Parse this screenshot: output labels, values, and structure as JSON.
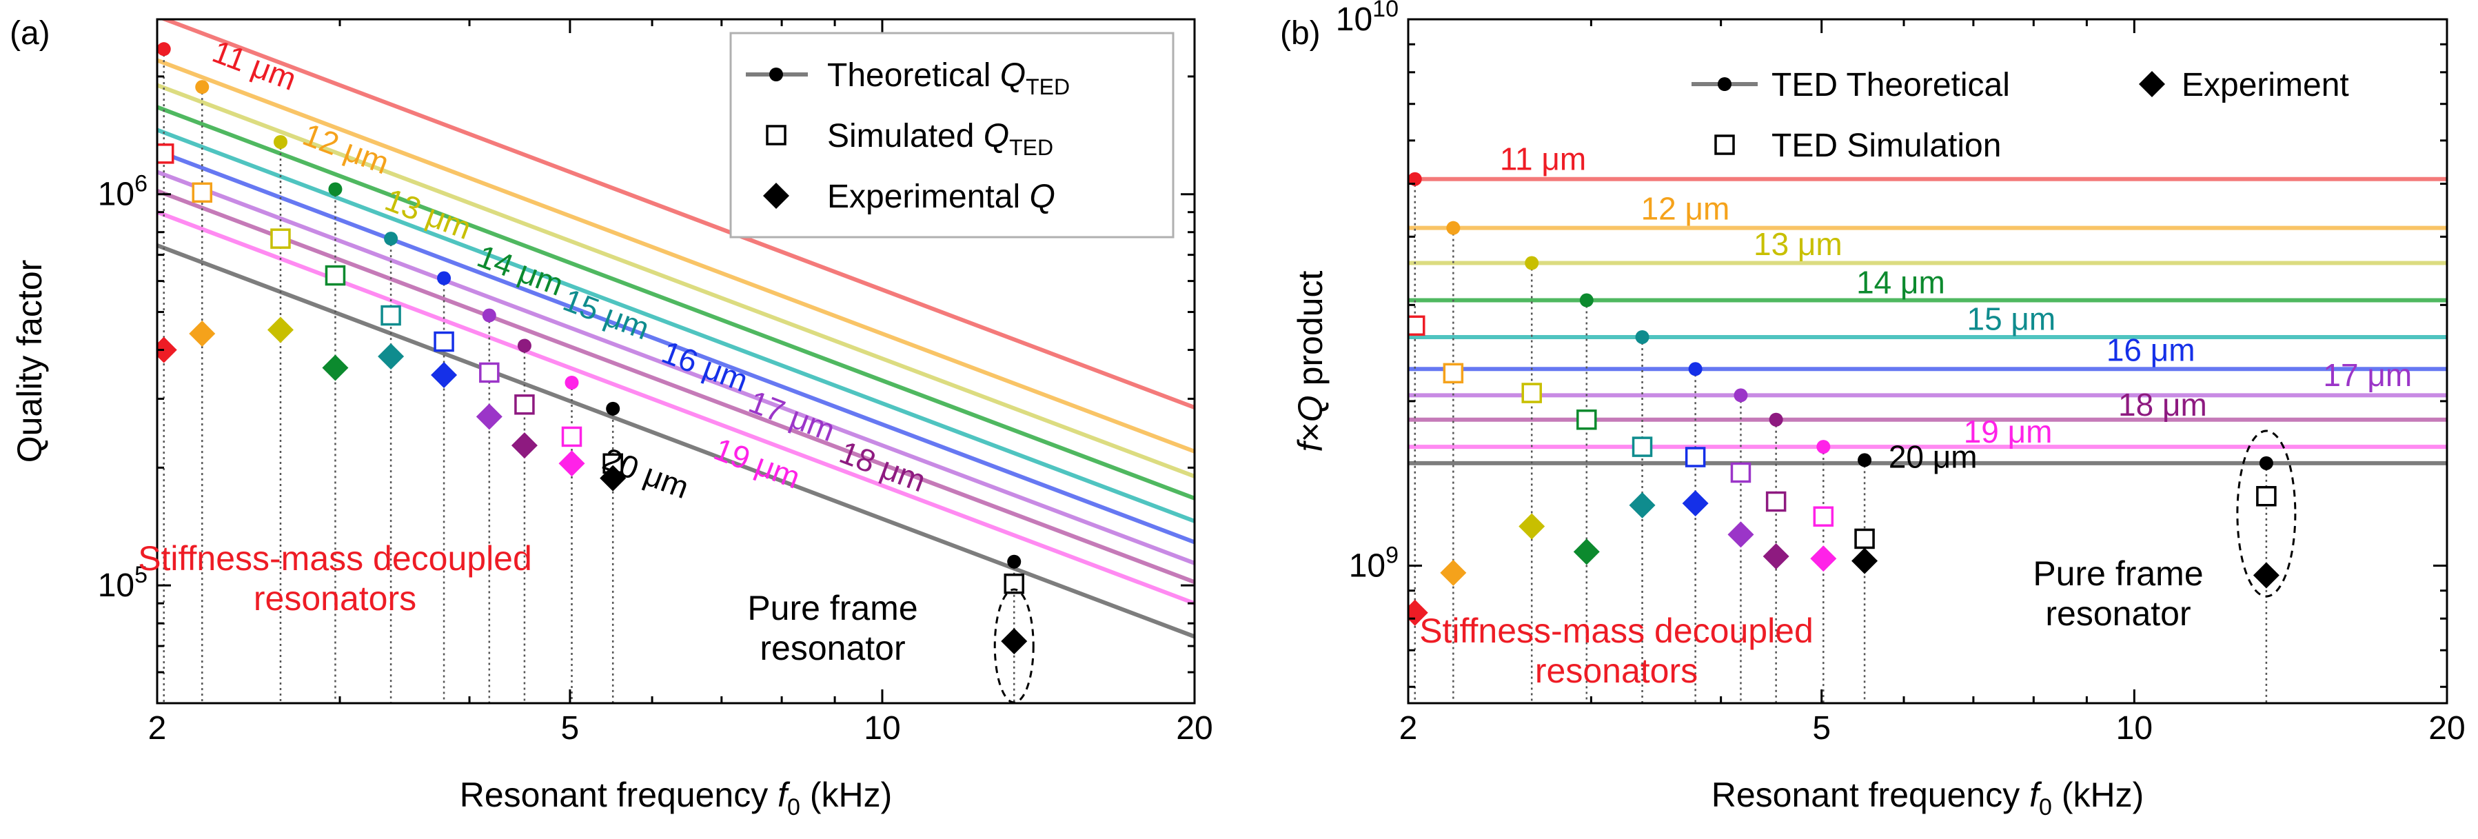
{
  "chart_data": [
    {
      "panel_label": "(a)",
      "type": "scatter",
      "xscale": "log",
      "yscale": "log",
      "xlim": [
        2,
        20
      ],
      "ylim": [
        50000,
        2800000
      ],
      "xticks": [
        2,
        5,
        10,
        20
      ],
      "xtick_labels": [
        "2",
        "5",
        "10",
        "20"
      ],
      "yticks": [
        100000,
        1000000
      ],
      "xlabel": "Resonant frequency f0 (kHz)",
      "xlabel_parts": [
        "Resonant frequency ",
        "f",
        "0",
        "  (kHz)"
      ],
      "ylabel": "Quality factor",
      "legend": [
        {
          "label": "Theoretical Q_TED",
          "prefix": "Theoretical ",
          "sym": "Q",
          "sub": "TED",
          "marker": "line-dot"
        },
        {
          "label": "Simulated Q_TED",
          "prefix": "Simulated ",
          "sym": "Q",
          "sub": "TED",
          "marker": "open-square"
        },
        {
          "label": "Experimental Q",
          "prefix": "Experimental ",
          "sym": "Q",
          "sub": "",
          "marker": "diamond"
        }
      ],
      "series": [
        {
          "name": "11 μm",
          "color": "#ee1c25",
          "f": 2.03,
          "theory": 2350000,
          "sim": 1270000,
          "exp": 400000
        },
        {
          "name": "12 μm",
          "color": "#f5a21b",
          "f": 2.21,
          "theory": 1880000,
          "sim": 1010000,
          "exp": 440000
        },
        {
          "name": "13 μm",
          "color": "#c8bf00",
          "f": 2.63,
          "theory": 1360000,
          "sim": 770000,
          "exp": 450000
        },
        {
          "name": "14 μm",
          "color": "#0c8a2e",
          "f": 2.97,
          "theory": 1030000,
          "sim": 620000,
          "exp": 360000
        },
        {
          "name": "15 μm",
          "color": "#0f8c8e",
          "f": 3.36,
          "theory": 770000,
          "sim": 490000,
          "exp": 385000
        },
        {
          "name": "16 μm",
          "color": "#1530e8",
          "f": 3.78,
          "theory": 610000,
          "sim": 420000,
          "exp": 345000
        },
        {
          "name": "17 μm",
          "color": "#9b35c8",
          "f": 4.18,
          "theory": 490000,
          "sim": 350000,
          "exp": 270000
        },
        {
          "name": "18 μm",
          "color": "#8e1a80",
          "f": 4.52,
          "theory": 410000,
          "sim": 290000,
          "exp": 228000
        },
        {
          "name": "19 μm",
          "color": "#ff22e8",
          "f": 5.02,
          "theory": 330000,
          "sim": 240000,
          "exp": 205000
        },
        {
          "name": "20 μm",
          "color": "#000000",
          "f": 5.5,
          "theory": 283000,
          "sim": 205000,
          "exp": 188000
        },
        {
          "name": "Pure frame",
          "color": "#000000",
          "f": 13.4,
          "theory": 115000,
          "sim": 101000,
          "exp": 72000
        }
      ],
      "theory_lines": [
        {
          "color": "#f47a7a",
          "q_at_2k": 2850000
        },
        {
          "color": "#f9c466",
          "q_at_2k": 2200000
        },
        {
          "color": "#dcdc80",
          "q_at_2k": 1900000
        },
        {
          "color": "#4fb860",
          "q_at_2k": 1670000
        },
        {
          "color": "#4fc4c0",
          "q_at_2k": 1460000
        },
        {
          "color": "#6678f2",
          "q_at_2k": 1290000
        },
        {
          "color": "#c88ae4",
          "q_at_2k": 1140000
        },
        {
          "color": "#c57ab8",
          "q_at_2k": 1020000
        },
        {
          "color": "#ff8af2",
          "q_at_2k": 900000
        },
        {
          "color": "#7d7d7d",
          "q_at_2k": 740000
        }
      ],
      "labels": [
        {
          "text": "11 μm",
          "color": "#ee1c25",
          "f": 2.25,
          "q": 2200000,
          "anchor": "start"
        },
        {
          "text": "12 μm",
          "color": "#f5a21b",
          "f": 2.75,
          "q": 1350000,
          "anchor": "start"
        },
        {
          "text": "13 μm",
          "color": "#c8bf00",
          "f": 3.3,
          "q": 920000,
          "anchor": "start"
        },
        {
          "text": "14 μm",
          "color": "#0c8a2e",
          "f": 4.05,
          "q": 660000,
          "anchor": "start"
        },
        {
          "text": "15 μm",
          "color": "#0f8c8e",
          "f": 4.9,
          "q": 510000,
          "anchor": "start"
        },
        {
          "text": "16 μm",
          "color": "#1530e8",
          "f": 6.1,
          "q": 375000,
          "anchor": "start"
        },
        {
          "text": "17 μm",
          "color": "#9b35c8",
          "f": 7.4,
          "q": 280000,
          "anchor": "start"
        },
        {
          "text": "18 μm",
          "color": "#8e1a80",
          "f": 9.05,
          "q": 208000,
          "anchor": "start"
        },
        {
          "text": "19 μm",
          "color": "#ff22e8",
          "f": 6.85,
          "q": 212000,
          "anchor": "start"
        },
        {
          "text": "20 μm",
          "color": "#000000",
          "f": 5.35,
          "q": 200000,
          "anchor": "start"
        }
      ],
      "annotations": [
        {
          "lines": [
            "Stiffness-mass decoupled",
            "resonators"
          ],
          "color": "#ee1c25"
        },
        {
          "lines": [
            "Pure frame",
            "resonator"
          ],
          "color": "#000000"
        }
      ]
    },
    {
      "panel_label": "(b)",
      "type": "scatter",
      "xscale": "log",
      "yscale": "log",
      "xlim": [
        2,
        20
      ],
      "ylim": [
        560000000,
        10000000000
      ],
      "xticks": [
        2,
        5,
        10,
        20
      ],
      "xtick_labels": [
        "2",
        "5",
        "10",
        "20"
      ],
      "yticks": [
        1000000000,
        10000000000
      ],
      "xlabel": "Resonant frequency f0 (kHz)",
      "xlabel_parts": [
        "Resonant frequency ",
        "f",
        "0",
        "  (kHz)"
      ],
      "ylabel": "f×Q product",
      "ylabel_parts": [
        "f",
        "×",
        "Q",
        " product"
      ],
      "legend": [
        {
          "label": "TED Theoretical",
          "marker": "line-dot"
        },
        {
          "label": "Experiment",
          "marker": "diamond"
        },
        {
          "label": "TED Simulation",
          "marker": "open-square"
        }
      ],
      "series": [
        {
          "name": "11 μm",
          "color": "#ee1c25",
          "f": 2.03,
          "theory": 5100000000,
          "sim": 2750000000,
          "exp": 820000000
        },
        {
          "name": "12 μm",
          "color": "#f5a21b",
          "f": 2.21,
          "theory": 4150000000,
          "sim": 2250000000,
          "exp": 970000000
        },
        {
          "name": "13 μm",
          "color": "#c8bf00",
          "f": 2.63,
          "theory": 3580000000,
          "sim": 2070000000,
          "exp": 1180000000
        },
        {
          "name": "14 μm",
          "color": "#0c8a2e",
          "f": 2.97,
          "theory": 3060000000,
          "sim": 1850000000,
          "exp": 1060000000
        },
        {
          "name": "15 μm",
          "color": "#0f8c8e",
          "f": 3.36,
          "theory": 2620000000,
          "sim": 1650000000,
          "exp": 1290000000
        },
        {
          "name": "16 μm",
          "color": "#1530e8",
          "f": 3.78,
          "theory": 2290000000,
          "sim": 1580000000,
          "exp": 1300000000
        },
        {
          "name": "17 μm",
          "color": "#9b35c8",
          "f": 4.18,
          "theory": 2050000000,
          "sim": 1480000000,
          "exp": 1140000000
        },
        {
          "name": "18 μm",
          "color": "#8e1a80",
          "f": 4.52,
          "theory": 1850000000,
          "sim": 1310000000,
          "exp": 1040000000
        },
        {
          "name": "19 μm",
          "color": "#ff22e8",
          "f": 5.02,
          "theory": 1650000000,
          "sim": 1230000000,
          "exp": 1030000000
        },
        {
          "name": "20 μm",
          "color": "#000000",
          "f": 5.5,
          "theory": 1560000000,
          "sim": 1120000000,
          "exp": 1020000000
        },
        {
          "name": "Pure frame",
          "color": "#000000",
          "f": 13.4,
          "theory": 1540000000,
          "sim": 1340000000,
          "exp": 960000000
        }
      ],
      "theory_lines": [
        {
          "color": "#f47a7a",
          "fq": 5100000000
        },
        {
          "color": "#f9c466",
          "fq": 4150000000
        },
        {
          "color": "#dcdc80",
          "fq": 3580000000
        },
        {
          "color": "#4fb860",
          "fq": 3060000000
        },
        {
          "color": "#4fc4c0",
          "fq": 2620000000
        },
        {
          "color": "#6678f2",
          "fq": 2290000000
        },
        {
          "color": "#c88ae4",
          "fq": 2050000000
        },
        {
          "color": "#c57ab8",
          "fq": 1850000000
        },
        {
          "color": "#ff8af2",
          "fq": 1650000000
        },
        {
          "color": "#7d7d7d",
          "fq": 1540000000
        }
      ],
      "labels": [
        {
          "text": "11 μm",
          "color": "#ee1c25",
          "f": 2.45,
          "q": 5300000000,
          "anchor": "start"
        },
        {
          "text": "12 μm",
          "color": "#f5a21b",
          "f": 3.35,
          "q": 4300000000,
          "anchor": "start"
        },
        {
          "text": "13 μm",
          "color": "#c8bf00",
          "f": 4.3,
          "q": 3700000000,
          "anchor": "start"
        },
        {
          "text": "14 μm",
          "color": "#0c8a2e",
          "f": 5.4,
          "q": 3150000000,
          "anchor": "start"
        },
        {
          "text": "15 μm",
          "color": "#0f8c8e",
          "f": 6.9,
          "q": 2700000000,
          "anchor": "start"
        },
        {
          "text": "16 μm",
          "color": "#1530e8",
          "f": 9.4,
          "q": 2370000000,
          "anchor": "start"
        },
        {
          "text": "17 μm",
          "color": "#9b35c8",
          "f": 15.2,
          "q": 2130000000,
          "anchor": "start"
        },
        {
          "text": "18 μm",
          "color": "#8e1a80",
          "f": 9.65,
          "q": 1880000000,
          "anchor": "start"
        },
        {
          "text": "19 μm",
          "color": "#ff22e8",
          "f": 6.85,
          "q": 1680000000,
          "anchor": "start"
        },
        {
          "text": "20 μm",
          "color": "#000000",
          "f": 5.8,
          "q": 1510000000,
          "anchor": "start"
        }
      ],
      "annotations": [
        {
          "lines": [
            "Stiffness-mass decoupled",
            "resonators"
          ],
          "color": "#ee1c25"
        },
        {
          "lines": [
            "Pure frame",
            "resonator"
          ],
          "color": "#000000"
        }
      ]
    }
  ]
}
